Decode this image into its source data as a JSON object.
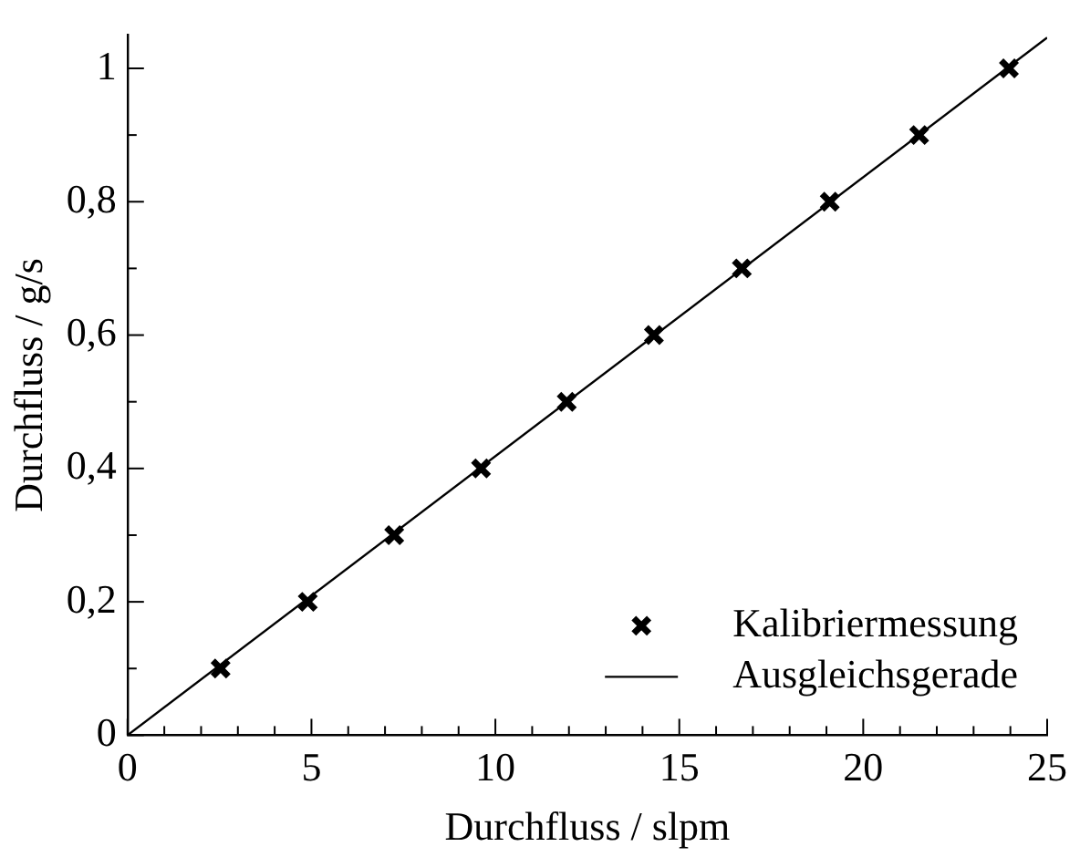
{
  "chart_data": {
    "type": "scatter",
    "xlabel": "Durchfluss / slpm",
    "ylabel": "Durchfluss / g/s",
    "xlim": [
      0,
      25
    ],
    "ylim": [
      0,
      1.05
    ],
    "xticks": [
      {
        "value": 0,
        "label": "0"
      },
      {
        "value": 1,
        "label": null
      },
      {
        "value": 2,
        "label": null
      },
      {
        "value": 3,
        "label": null
      },
      {
        "value": 4,
        "label": null
      },
      {
        "value": 5,
        "label": "5"
      },
      {
        "value": 6,
        "label": null
      },
      {
        "value": 7,
        "label": null
      },
      {
        "value": 8,
        "label": null
      },
      {
        "value": 9,
        "label": null
      },
      {
        "value": 10,
        "label": "10"
      },
      {
        "value": 11,
        "label": null
      },
      {
        "value": 12,
        "label": null
      },
      {
        "value": 13,
        "label": null
      },
      {
        "value": 14,
        "label": null
      },
      {
        "value": 15,
        "label": "15"
      },
      {
        "value": 16,
        "label": null
      },
      {
        "value": 17,
        "label": null
      },
      {
        "value": 18,
        "label": null
      },
      {
        "value": 19,
        "label": null
      },
      {
        "value": 20,
        "label": "20"
      },
      {
        "value": 21,
        "label": null
      },
      {
        "value": 22,
        "label": null
      },
      {
        "value": 23,
        "label": null
      },
      {
        "value": 24,
        "label": null
      },
      {
        "value": 25,
        "label": "25"
      }
    ],
    "yticks": [
      {
        "value": 0,
        "label": "0"
      },
      {
        "value": 0.1,
        "label": null
      },
      {
        "value": 0.2,
        "label": "0,2"
      },
      {
        "value": 0.3,
        "label": null
      },
      {
        "value": 0.4,
        "label": "0,4"
      },
      {
        "value": 0.5,
        "label": null
      },
      {
        "value": 0.6,
        "label": "0,6"
      },
      {
        "value": 0.7,
        "label": null
      },
      {
        "value": 0.8,
        "label": "0,8"
      },
      {
        "value": 0.9,
        "label": null
      },
      {
        "value": 1,
        "label": "1"
      }
    ],
    "grid": false,
    "legend": "bottom right",
    "series": [
      {
        "name": "Kalibriermessung",
        "type": "scatter",
        "color": "#000000",
        "marker": "cross",
        "x": [
          2.53,
          4.9,
          7.25,
          9.61,
          11.94,
          14.31,
          16.7,
          19.09,
          21.52,
          23.96
        ],
        "values": [
          0.1,
          0.2,
          0.3,
          0.4,
          0.5,
          0.6,
          0.7,
          0.8,
          0.9,
          1
        ]
      },
      {
        "name": "Ausgleichsgerade",
        "type": "line",
        "color": "#000000",
        "marker": "none",
        "line_style": "solid",
        "x": [
          0,
          25
        ],
        "values": [
          0,
          1.046
        ]
      }
    ]
  }
}
